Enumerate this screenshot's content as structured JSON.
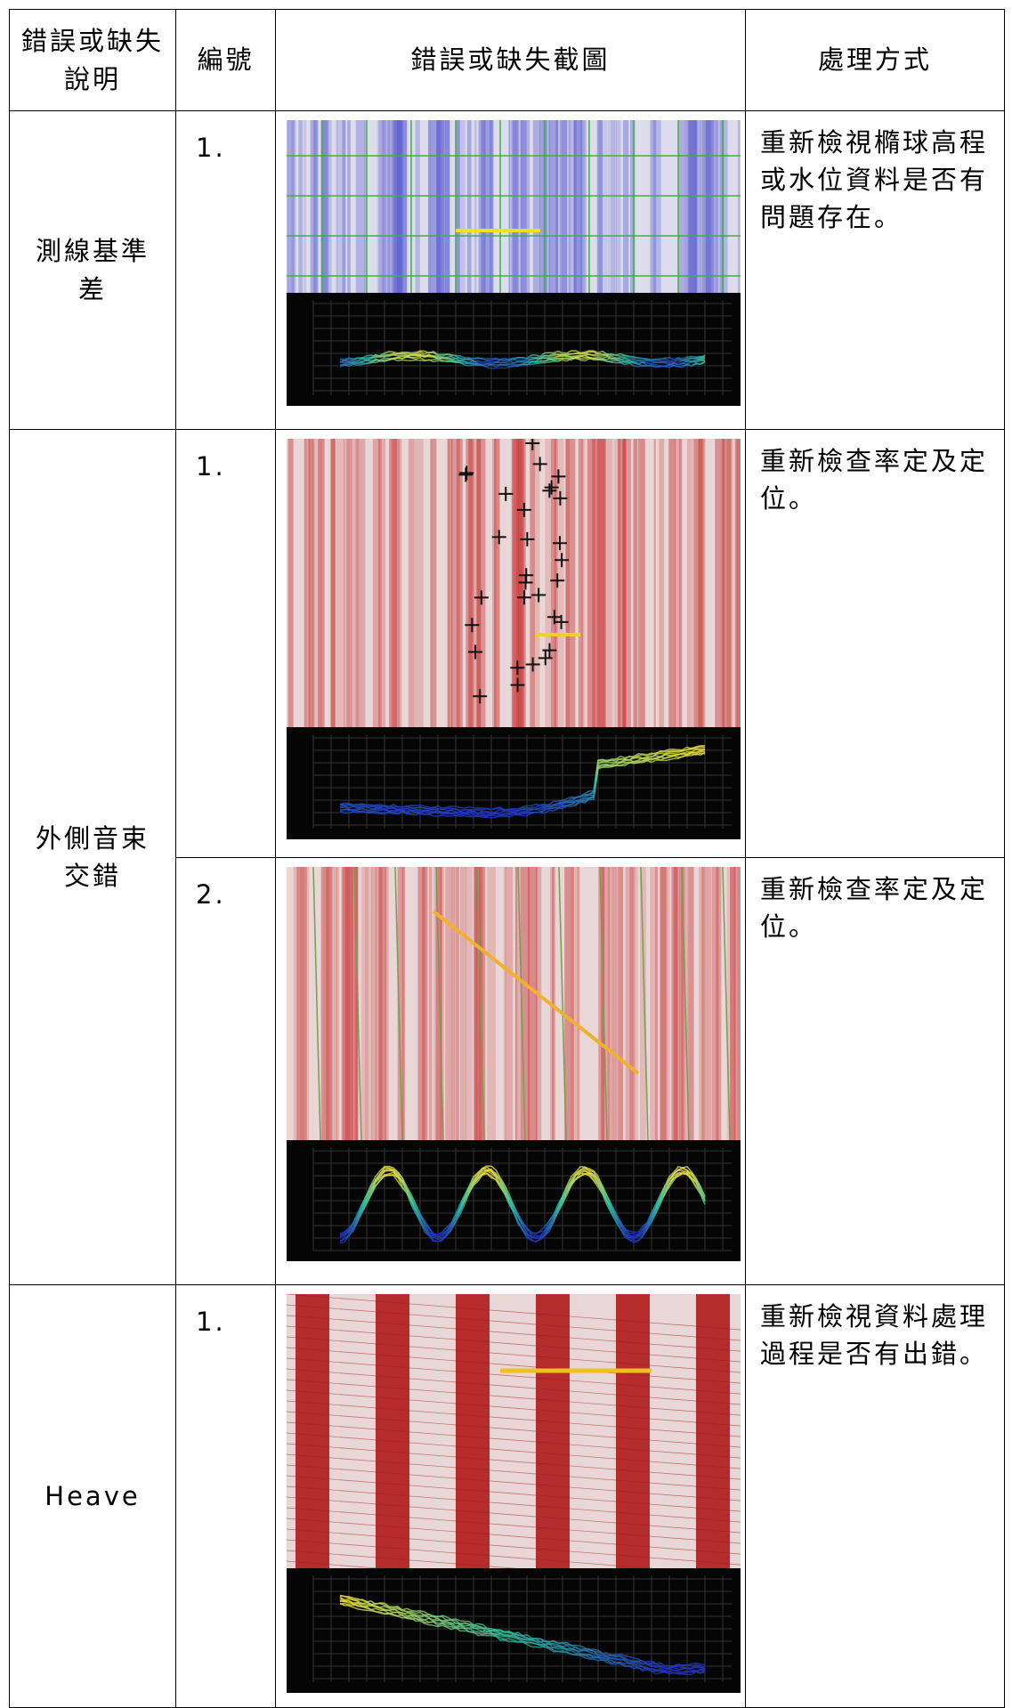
{
  "table": {
    "header": [
      "錯誤或缺失說明",
      "編號",
      "錯誤或缺失截圖",
      "處理方式"
    ],
    "rows": [
      {
        "description": "測線基準差",
        "entries": [
          {
            "number": "1.",
            "action": "重新檢視橢球高程或水位資料是否有問題存在。"
          }
        ]
      },
      {
        "description": "外側音束交錯",
        "entries": [
          {
            "number": "1.",
            "action": "重新檢查率定及定位。"
          },
          {
            "number": "2.",
            "action": "重新檢查率定及定位。"
          }
        ]
      },
      {
        "description": "Heave",
        "entries": [
          {
            "number": "1.",
            "action": "重新檢視資料處理過程是否有出錯。"
          }
        ]
      }
    ]
  }
}
